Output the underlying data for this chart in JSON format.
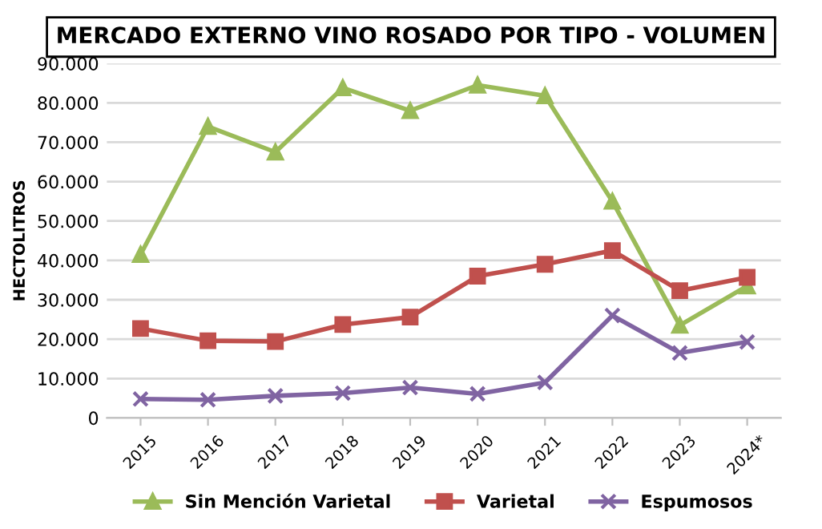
{
  "chart_data": {
    "type": "line",
    "title": "MERCADO EXTERNO VINO ROSADO POR TIPO - VOLUMEN",
    "ylabel": "HECTOLITROS",
    "categories": [
      "2015",
      "2016",
      "2017",
      "2018",
      "2019",
      "2020",
      "2021",
      "2022",
      "2023",
      "2024*"
    ],
    "series": [
      {
        "name": "Sin Mención Varietal",
        "color": "#9bbb59",
        "marker": "triangle",
        "values": [
          41500,
          74000,
          67500,
          83800,
          78000,
          84500,
          81800,
          55000,
          23500,
          33500
        ]
      },
      {
        "name": "Varietal",
        "color": "#c0504d",
        "marker": "square",
        "values": [
          22700,
          19600,
          19400,
          23700,
          25600,
          36000,
          39000,
          42500,
          32300,
          35700
        ]
      },
      {
        "name": "Espumosos",
        "color": "#8064a2",
        "marker": "cross",
        "values": [
          4800,
          4600,
          5600,
          6300,
          7700,
          6100,
          9000,
          26000,
          16500,
          19300
        ]
      }
    ],
    "ylim": [
      0,
      90000
    ],
    "yticks": [
      0,
      {
        "value": 10000,
        "label": "10.000"
      },
      {
        "value": 20000,
        "label": "20.000"
      },
      {
        "value": 30000,
        "label": "30.000"
      },
      {
        "value": 40000,
        "label": "40.000"
      },
      {
        "value": 50000,
        "label": "50.000"
      },
      {
        "value": 60000,
        "label": "60.000"
      },
      {
        "value": 70000,
        "label": "70.000"
      },
      {
        "value": 80000,
        "label": "80.000"
      },
      {
        "value": 90000,
        "label": "90.000"
      }
    ],
    "grid": "y",
    "legend": "bottom",
    "line_style": "solid"
  }
}
